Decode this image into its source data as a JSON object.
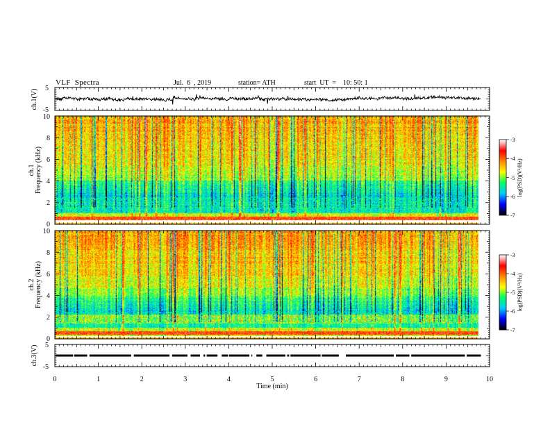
{
  "header": {
    "title": "VLF  Spectra",
    "date": "Jul.  6  , 2019",
    "station": "station= ATH",
    "start": "start  UT  =    10: 50: 1"
  },
  "chart_data": [
    {
      "type": "line",
      "ylabel": "ch.1(V)",
      "ylim": [
        -5,
        5
      ],
      "yticks": [
        "5",
        "-5"
      ],
      "approx_level": 0,
      "noise_amplitude": 1.2
    },
    {
      "type": "heatmap",
      "ylabel_line1": "ch.1",
      "ylabel_line2": "Frequency  (kHz)",
      "ylim": [
        0,
        10
      ],
      "yticks": [
        "10",
        "8",
        "6",
        "4",
        "2",
        "0"
      ],
      "colorbar": {
        "label": "log(PSD)(V²/Hz)",
        "range": [
          -7,
          -3
        ],
        "ticks": [
          "-3",
          "-4",
          "-5",
          "-6",
          "-7"
        ]
      }
    },
    {
      "type": "heatmap",
      "ylabel_line1": "ch.2",
      "ylabel_line2": "Frequency  (kHz)",
      "ylim": [
        0,
        10
      ],
      "yticks": [
        "10",
        "8",
        "6",
        "4",
        "2",
        "0"
      ],
      "colorbar": {
        "label": "log(PSD)(V²/Hz)",
        "range": [
          -7,
          -3
        ],
        "ticks": [
          "-3",
          "-4",
          "-5",
          "-6",
          "-7"
        ]
      }
    },
    {
      "type": "line",
      "ylabel": "ch.3(V)",
      "ylim": [
        -5,
        5
      ],
      "yticks": [
        "5",
        "-5"
      ],
      "approx_level": 0
    }
  ],
  "xaxis": {
    "label": "Time  (min)",
    "xlim": [
      0,
      10
    ],
    "ticks": [
      "0",
      "1",
      "2",
      "3",
      "4",
      "5",
      "6",
      "7",
      "8",
      "9",
      "10"
    ],
    "data_end": 9.8
  },
  "colors": {
    "colormap": [
      "#000000",
      "#0000ff",
      "#00ccff",
      "#00ff66",
      "#ffff00",
      "#ff8800",
      "#ff0000",
      "#ffffff"
    ]
  }
}
